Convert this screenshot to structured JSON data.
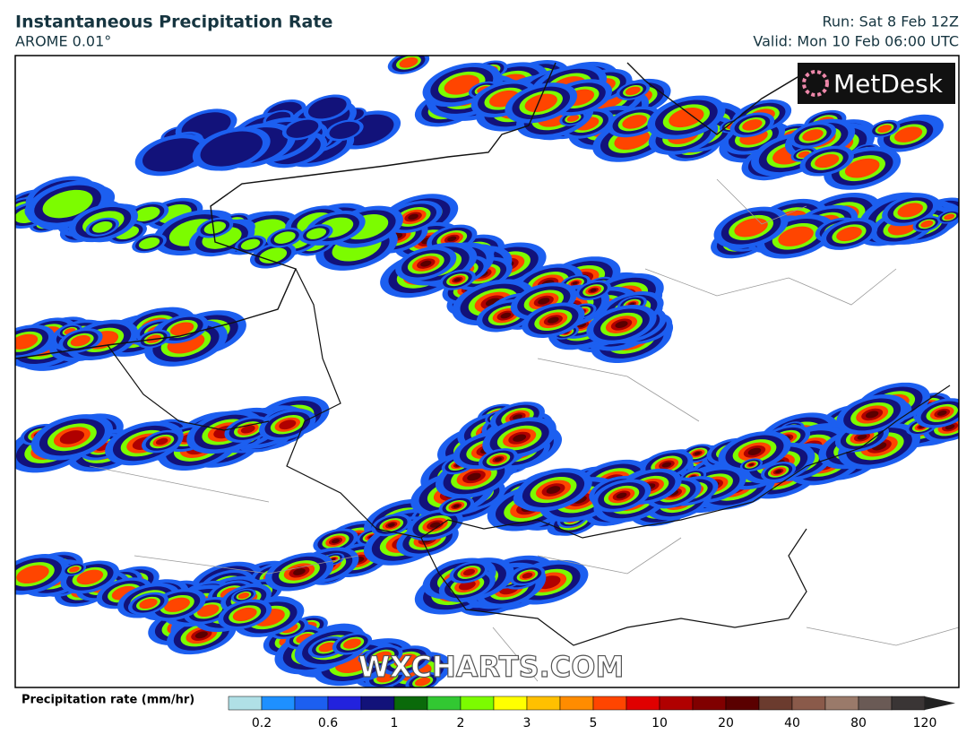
{
  "header": {
    "title": "Instantaneous Precipitation Rate",
    "subtitle": "AROME 0.01°",
    "run": "Run: Sat 8 Feb 12Z",
    "valid": "Valid: Mon 10 Feb 06:00 UTC"
  },
  "map": {
    "logo": "MetDesk",
    "watermark": "WXCHARTS.COM"
  },
  "legend": {
    "label": "Precipitation rate (mm/hr)",
    "ticks": [
      0.2,
      0.6,
      1,
      2,
      3,
      5,
      10,
      20,
      40,
      80,
      120
    ],
    "colors": [
      "#b0e0e6",
      "#1e90ff",
      "#1c5ff0",
      "#2222dd",
      "#12127a",
      "#0a6a0a",
      "#32c832",
      "#7cfc00",
      "#ffff00",
      "#ffc000",
      "#ff8c00",
      "#ff4500",
      "#e00000",
      "#b00000",
      "#800000",
      "#5a0000",
      "#6b3b2e",
      "#8a5a4a",
      "#9a7a6a",
      "#6a5a55",
      "#3a3535"
    ]
  }
}
